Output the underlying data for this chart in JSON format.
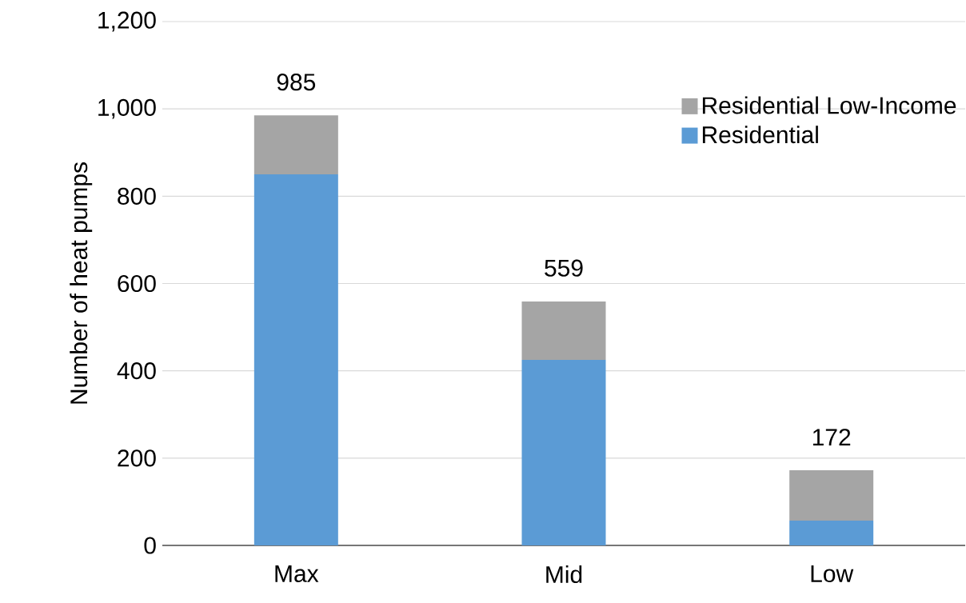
{
  "chart_data": {
    "type": "bar",
    "stacked": true,
    "ylabel": "Number of heat pumps",
    "categories": [
      "Max",
      "Mid",
      "Low"
    ],
    "series": [
      {
        "name": "Residential",
        "color": "#5b9bd5",
        "values": [
          850,
          425,
          57
        ]
      },
      {
        "name": "Residential Low-Income",
        "color": "#a5a5a5",
        "values": [
          135,
          134,
          115
        ]
      }
    ],
    "totals": [
      "985",
      "559",
      "172"
    ],
    "ylim": [
      0,
      1200
    ],
    "yticks": [
      0,
      200,
      400,
      600,
      800,
      {
        "value": 1000,
        "label": "1,000"
      },
      {
        "value": 1200,
        "label": "1,200"
      }
    ],
    "grid": "y",
    "legend": "top right"
  }
}
